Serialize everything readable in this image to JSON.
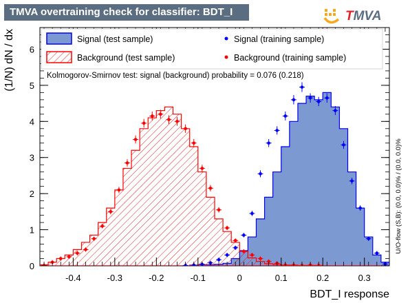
{
  "title": "TMVA overtraining check for classifier: BDT_I",
  "logo": {
    "prefix": "",
    "brand_t": "T",
    "brand_rest": "MVA"
  },
  "ks_text": "Kolmogorov-Smirnov test: signal (background) probability = 0.076 (0.218)",
  "side_text": "U/O-flow (S,B): (0.0, 0.0)% / (0.0, 0.0)%",
  "legend": {
    "signal_test": "Signal (test sample)",
    "background_test": "Background (test sample)",
    "signal_train": "Signal (training sample)",
    "background_train": "Background (training sample)"
  },
  "colors": {
    "signal_fill": "#7d99d1",
    "signal_line": "#0000ee",
    "background_line": "#ff0000",
    "train_signal": "#0000ff",
    "train_background": "#ff0000",
    "title_bg": "#5b6d81"
  },
  "chart_data": {
    "type": "histogram",
    "title": "TMVA overtraining check for classifier: BDT_I",
    "xlabel": "BDT_I response",
    "ylabel": "(1/N) dN / dx",
    "xlim": [
      -0.48,
      0.36
    ],
    "ylim": [
      0,
      6.6
    ],
    "xticks": [
      -0.4,
      -0.3,
      -0.2,
      -0.1,
      0,
      0.1,
      0.2,
      0.3
    ],
    "xtick_labels": [
      "-0.4",
      "-0.3",
      "-0.2",
      "-0.1",
      "0",
      "0.1",
      "0.2",
      "0.3"
    ],
    "yticks": [
      0,
      1,
      2,
      3,
      4,
      5,
      6
    ],
    "ytick_labels": [
      "0",
      "1",
      "2",
      "3",
      "4",
      "5",
      "6"
    ],
    "bin_edges_start": -0.48,
    "bin_width": 0.02,
    "series": [
      {
        "name": "Signal (test sample)",
        "kind": "filled-hist",
        "values": [
          0,
          0,
          0,
          0,
          0,
          0,
          0,
          0,
          0,
          0,
          0,
          0,
          0,
          0,
          0,
          0,
          0,
          0,
          0.02,
          0.03,
          0.03,
          0.04,
          0.07,
          0.2,
          0.42,
          0.8,
          1.3,
          1.9,
          2.6,
          3.3,
          4.0,
          4.5,
          4.7,
          4.6,
          4.8,
          4.4,
          3.8,
          2.6,
          1.6,
          0.8,
          0.3,
          0.1
        ]
      },
      {
        "name": "Background (test sample)",
        "kind": "hatched-hist",
        "values": [
          0.03,
          0.1,
          0.2,
          0.3,
          0.45,
          0.65,
          0.85,
          1.2,
          1.6,
          2.1,
          2.7,
          3.2,
          3.8,
          4.1,
          4.3,
          4.4,
          4.2,
          3.8,
          3.3,
          2.6,
          1.9,
          1.3,
          0.95,
          0.65,
          0.4,
          0.22,
          0.12,
          0.06,
          0.04,
          0.02,
          0.02,
          0.01,
          0.01,
          0.01,
          0,
          0,
          0,
          0,
          0,
          0,
          0,
          0
        ]
      },
      {
        "name": "Signal (training sample)",
        "kind": "points",
        "values": [
          0,
          0,
          0,
          0,
          0,
          0,
          0,
          0,
          0,
          0,
          0,
          0,
          0,
          0,
          0,
          0,
          0,
          0.01,
          0.02,
          0.04,
          0.08,
          0.17,
          0.3,
          0.5,
          0.85,
          1.45,
          2.55,
          3.4,
          3.75,
          4.15,
          4.6,
          4.95,
          4.65,
          4.55,
          4.65,
          4.3,
          3.35,
          2.35,
          1.6,
          0.75,
          0.35,
          0.05
        ]
      },
      {
        "name": "Background (training sample)",
        "kind": "points",
        "values": [
          0.01,
          0.1,
          0.2,
          0.25,
          0.35,
          0.45,
          0.75,
          1.1,
          1.5,
          2.1,
          2.85,
          3.5,
          3.95,
          4.15,
          4.2,
          4.05,
          4.0,
          3.8,
          3.4,
          2.7,
          2.15,
          1.55,
          1.05,
          0.7,
          0.4,
          0.3,
          0.2,
          0.12,
          0.07,
          0.02,
          0.02,
          0.01,
          0.02,
          0.01,
          0,
          0,
          0,
          0,
          0,
          0,
          0,
          0
        ]
      }
    ]
  }
}
